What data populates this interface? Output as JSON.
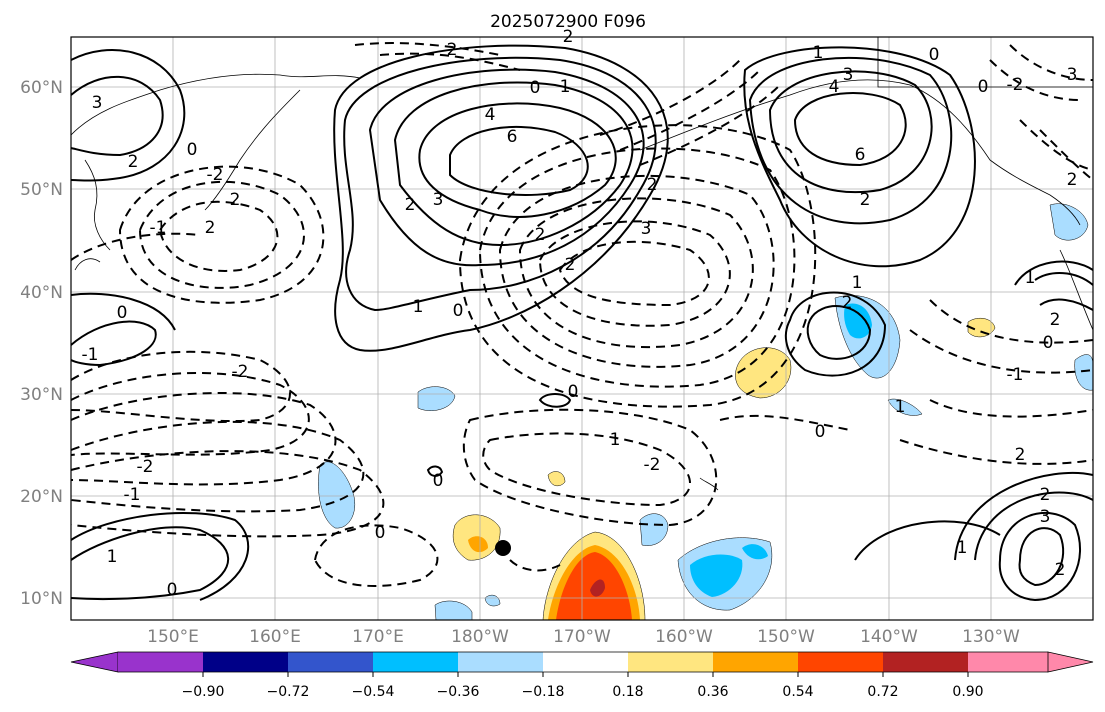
{
  "title": "2025072900 F096",
  "lon_labels": [
    "150°E",
    "160°E",
    "170°E",
    "180°W",
    "170°W",
    "160°W",
    "150°W",
    "140°W",
    "130°W"
  ],
  "lat_labels": [
    "60°N",
    "50°N",
    "40°N",
    "30°N",
    "20°N",
    "10°N"
  ],
  "colorbar": {
    "ticks": [
      "−0.90",
      "−0.72",
      "−0.54",
      "−0.36",
      "−0.18",
      "0.18",
      "0.36",
      "0.54",
      "0.72",
      "0.90"
    ],
    "colors": [
      "#9933cc",
      "#000088",
      "#3355cc",
      "#00bfff",
      "#aaddff",
      "#ffffff",
      "#ffe680",
      "#ffa500",
      "#ff4500",
      "#b22222",
      "#ff88aa"
    ]
  },
  "contour_labels": [
    "2",
    "3",
    "2",
    "0",
    "1",
    "4",
    "6",
    "1",
    "3",
    "2",
    "3",
    "2",
    "2",
    "4",
    "6",
    "2",
    "0",
    "-2",
    "0",
    "2",
    "0",
    "-2",
    "-1",
    "2",
    "2",
    "3",
    "2",
    "1",
    "0",
    "3",
    "2",
    "1",
    "2",
    "0",
    "-2",
    "-1",
    "1",
    "2",
    "0",
    "0",
    "-1",
    "1",
    "-2",
    "0",
    "-2",
    "-1",
    "0",
    "2",
    "1",
    "0",
    "-2",
    "1",
    "3",
    "2",
    "0",
    "1"
  ],
  "marker": "storm-center"
}
